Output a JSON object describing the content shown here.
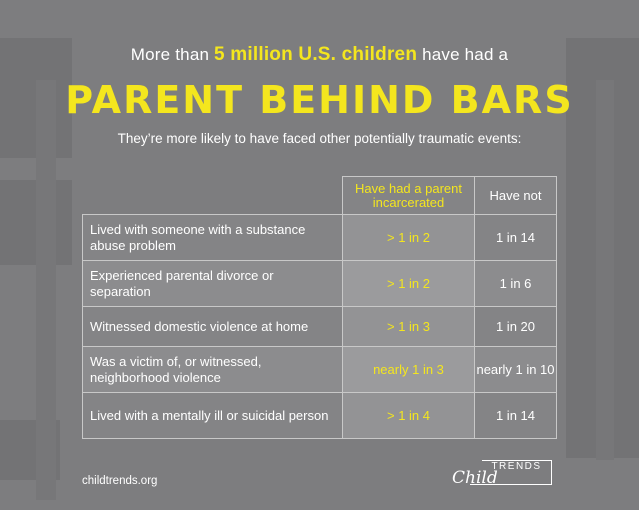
{
  "headline": {
    "prefix": "More than ",
    "highlight": "5 million U.S. children",
    "suffix": " have had a"
  },
  "title": "PARENT BEHIND BARS",
  "subtitle": "They’re more likely to have faced other potentially traumatic events:",
  "table": {
    "headers": [
      "Have had a parent incarcerated",
      "Have not"
    ],
    "rows": [
      {
        "label": "Lived with someone with a substance abuse problem",
        "incarcerated": "> 1 in 2",
        "not": "1 in 14"
      },
      {
        "label": "Experienced parental divorce or separation",
        "incarcerated": "> 1 in 2",
        "not": "1 in 6"
      },
      {
        "label": "Witnessed domestic violence at home",
        "incarcerated": "> 1 in 3",
        "not": "1 in 20"
      },
      {
        "label": "Was a victim of, or witnessed, neighborhood violence",
        "incarcerated": "nearly 1 in 3",
        "not": "nearly 1 in 10"
      },
      {
        "label": "Lived with a mentally ill or suicidal person",
        "incarcerated": "> 1 in 4",
        "not": "1 in 14"
      }
    ]
  },
  "footer": {
    "url": "childtrends.org",
    "logo_child": "Child",
    "logo_trends": "TRENDS"
  },
  "colors": {
    "background": "#7d7d7f",
    "accent": "#f4e61e",
    "text": "#ffffff"
  }
}
